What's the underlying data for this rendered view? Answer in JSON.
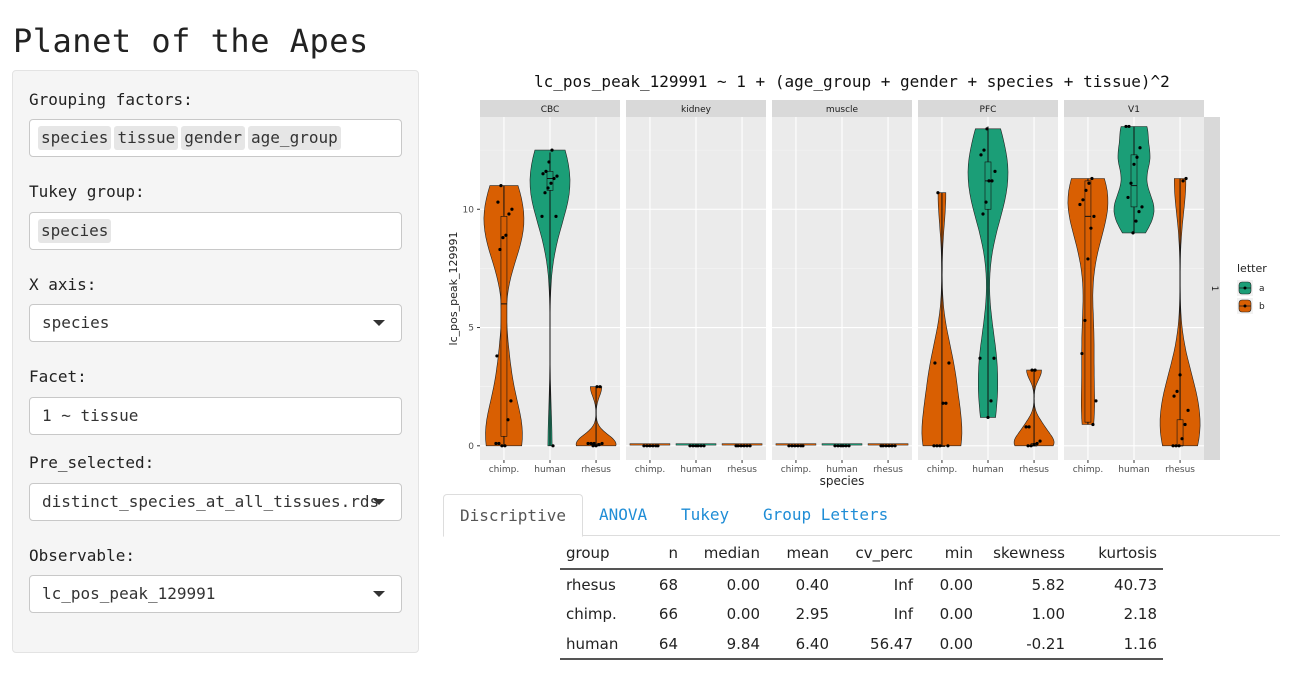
{
  "app": {
    "title": "Planet of the Apes"
  },
  "sidebar": {
    "grouping": {
      "label": "Grouping factors:",
      "chips": [
        "species",
        "tissue",
        "gender",
        "age_group"
      ]
    },
    "tukey": {
      "label": "Tukey group:",
      "chips": [
        "species"
      ]
    },
    "xaxis": {
      "label": "X axis:",
      "value": "species"
    },
    "facet": {
      "label": "Facet:",
      "value": "1 ~ tissue"
    },
    "preselected": {
      "label": "Pre_selected:",
      "value": "distinct_species_at_all_tissues.rds"
    },
    "observable": {
      "label": "Observable:",
      "value": "lc_pos_peak_129991"
    }
  },
  "chart_data": {
    "type": "violin+boxplot+jitter",
    "title": "lc_pos_peak_129991 ~ 1 + (age_group + gender + species + tissue)^2",
    "xlabel": "species",
    "ylabel": "lc_pos_peak_129991",
    "facets": [
      "CBC",
      "kidney",
      "muscle",
      "PFC",
      "V1"
    ],
    "row_strip": "1",
    "categories": [
      "chimp.",
      "human",
      "rhesus"
    ],
    "y_ticks": [
      0,
      5,
      10
    ],
    "ylim": [
      -0.6,
      13.9
    ],
    "legend": {
      "title": "letter",
      "entries": [
        "a",
        "b"
      ],
      "placement": "right"
    },
    "colors": {
      "a": "#1b9e77",
      "b": "#d95f02",
      "panel": "#ebebeb",
      "strip": "#d9d9d9"
    },
    "groups": [
      {
        "facet": "CBC",
        "species": "chimp.",
        "letter": "b",
        "box": {
          "q1": 0.4,
          "median": 6.0,
          "q3": 9.7,
          "min": 0,
          "max": 11.0
        },
        "points": [
          0.1,
          0.1,
          0.0,
          0.0,
          1.1,
          1.9,
          3.8,
          8.3,
          8.8,
          8.9,
          9.8,
          10.0,
          10.3,
          11.0
        ]
      },
      {
        "facet": "CBC",
        "species": "human",
        "letter": "a",
        "box": {
          "q1": 10.8,
          "median": 11.3,
          "q3": 11.6,
          "min": 0,
          "max": 12.4
        },
        "points": [
          0.0,
          9.7,
          9.7,
          10.7,
          10.9,
          11.1,
          11.3,
          11.4,
          11.5,
          11.6,
          12.0,
          12.5
        ]
      },
      {
        "facet": "CBC",
        "species": "rhesus",
        "letter": "b",
        "box": {
          "q1": 0.0,
          "median": 0.05,
          "q3": 0.1,
          "min": 0,
          "max": 2.5
        },
        "points": [
          0.0,
          0.0,
          0.05,
          0.1,
          0.1,
          0.1,
          0.1,
          2.5,
          2.5
        ]
      },
      {
        "facet": "kidney",
        "species": "chimp.",
        "letter": "b",
        "box": {
          "q1": 0,
          "median": 0,
          "q3": 0,
          "min": 0,
          "max": 0
        },
        "points": [
          0,
          0,
          0,
          0,
          0,
          0
        ]
      },
      {
        "facet": "kidney",
        "species": "human",
        "letter": "a",
        "box": {
          "q1": 0,
          "median": 0,
          "q3": 0,
          "min": 0,
          "max": 0
        },
        "points": [
          0,
          0,
          0,
          0,
          0,
          0
        ]
      },
      {
        "facet": "kidney",
        "species": "rhesus",
        "letter": "b",
        "box": {
          "q1": 0,
          "median": 0,
          "q3": 0,
          "min": 0,
          "max": 0
        },
        "points": [
          0,
          0,
          0,
          0,
          0,
          0
        ]
      },
      {
        "facet": "muscle",
        "species": "chimp.",
        "letter": "b",
        "box": {
          "q1": 0,
          "median": 0,
          "q3": 0,
          "min": 0,
          "max": 0
        },
        "points": [
          0,
          0,
          0,
          0,
          0,
          0
        ]
      },
      {
        "facet": "muscle",
        "species": "human",
        "letter": "a",
        "box": {
          "q1": 0,
          "median": 0,
          "q3": 0,
          "min": 0,
          "max": 0
        },
        "points": [
          0,
          0,
          0,
          0,
          0,
          0
        ]
      },
      {
        "facet": "muscle",
        "species": "rhesus",
        "letter": "b",
        "box": {
          "q1": 0,
          "median": 0,
          "q3": 0,
          "min": 0,
          "max": 0
        },
        "points": [
          0,
          0,
          0,
          0,
          0,
          0
        ]
      },
      {
        "facet": "PFC",
        "species": "chimp.",
        "letter": "b",
        "box": {
          "q1": 0,
          "median": 0,
          "q3": 0,
          "min": 0,
          "max": 10.7
        },
        "points": [
          0,
          0,
          0,
          0,
          1.8,
          1.8,
          3.5,
          3.5,
          10.7
        ]
      },
      {
        "facet": "PFC",
        "species": "human",
        "letter": "a",
        "box": {
          "q1": 10.0,
          "median": 11.2,
          "q3": 12.0,
          "min": 1.2,
          "max": 13.5
        },
        "points": [
          1.2,
          1.9,
          3.7,
          3.7,
          9.8,
          10.3,
          11.2,
          11.2,
          11.6,
          12.3,
          12.5,
          13.4
        ]
      },
      {
        "facet": "PFC",
        "species": "rhesus",
        "letter": "b",
        "box": {
          "q1": 0.0,
          "median": 0.0,
          "q3": 0.1,
          "min": 0,
          "max": 3.2
        },
        "points": [
          0,
          0,
          0.05,
          0.1,
          0.2,
          0.8,
          0.8,
          3.2,
          3.2
        ]
      },
      {
        "facet": "V1",
        "species": "chimp.",
        "letter": "b",
        "box": {
          "q1": 1.0,
          "median": 9.7,
          "q3": 11.2,
          "min": 0.9,
          "max": 11.3
        },
        "points": [
          0.9,
          1.9,
          3.9,
          5.3,
          7.9,
          9.2,
          9.7,
          10.2,
          10.4,
          10.8,
          11.1,
          11.3
        ]
      },
      {
        "facet": "V1",
        "species": "human",
        "letter": "a",
        "box": {
          "q1": 10.1,
          "median": 11.0,
          "q3": 12.3,
          "min": 9.0,
          "max": 13.5
        },
        "points": [
          9.0,
          9.5,
          9.9,
          10.1,
          10.5,
          11.1,
          11.9,
          12.2,
          12.6,
          13.5,
          13.5
        ]
      },
      {
        "facet": "V1",
        "species": "rhesus",
        "letter": "b",
        "box": {
          "q1": 0.0,
          "median": 0.0,
          "q3": 1.1,
          "min": 0,
          "max": 11.3
        },
        "points": [
          0,
          0,
          0,
          0.3,
          0.9,
          1.5,
          2.1,
          2.3,
          3.0,
          11.2,
          11.3
        ]
      }
    ]
  },
  "tabs": [
    "Discriptive",
    "ANOVA",
    "Tukey",
    "Group Letters"
  ],
  "active_tab": "Discriptive",
  "table": {
    "columns": [
      "group",
      "n",
      "median",
      "mean",
      "cv_perc",
      "min",
      "skewness",
      "kurtosis"
    ],
    "rows": [
      [
        "rhesus",
        "68",
        "0.00",
        "0.40",
        "Inf",
        "0.00",
        "5.82",
        "40.73"
      ],
      [
        "chimp.",
        "66",
        "0.00",
        "2.95",
        "Inf",
        "0.00",
        "1.00",
        "2.18"
      ],
      [
        "human",
        "64",
        "9.84",
        "6.40",
        "56.47",
        "0.00",
        "-0.21",
        "1.16"
      ]
    ]
  }
}
